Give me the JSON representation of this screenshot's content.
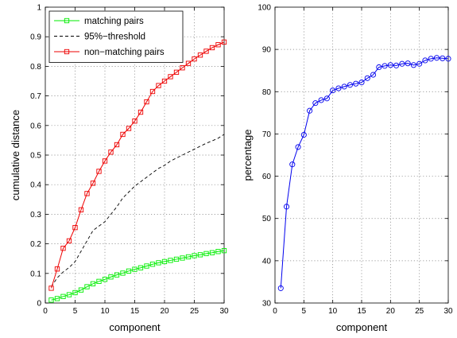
{
  "chart_data": [
    {
      "type": "line",
      "title": "",
      "xlabel": "component",
      "ylabel": "cumulative distance",
      "xlim": [
        0,
        30
      ],
      "ylim": [
        0,
        1
      ],
      "grid": true,
      "legend_position": "top-left",
      "x_ticks": [
        "0",
        "5",
        "10",
        "15",
        "20",
        "25",
        "30"
      ],
      "y_ticks": [
        "0",
        "0.1",
        "0.2",
        "0.3",
        "0.4",
        "0.5",
        "0.6",
        "0.7",
        "0.8",
        "0.9",
        "1"
      ],
      "x": [
        1,
        2,
        3,
        4,
        5,
        6,
        7,
        8,
        9,
        10,
        11,
        12,
        13,
        14,
        15,
        16,
        17,
        18,
        19,
        20,
        21,
        22,
        23,
        24,
        25,
        26,
        27,
        28,
        29,
        30
      ],
      "series": [
        {
          "name": "matching pairs",
          "color": "#00ee00",
          "marker": "square",
          "line": "solid",
          "values": [
            0.01,
            0.015,
            0.022,
            0.028,
            0.035,
            0.044,
            0.055,
            0.065,
            0.073,
            0.08,
            0.088,
            0.095,
            0.101,
            0.108,
            0.114,
            0.119,
            0.125,
            0.131,
            0.136,
            0.14,
            0.144,
            0.148,
            0.152,
            0.156,
            0.16,
            0.163,
            0.167,
            0.17,
            0.174,
            0.177
          ]
        },
        {
          "name": "95%−threshold",
          "color": "#000000",
          "marker": "none",
          "line": "dashed",
          "values": [
            0.055,
            0.085,
            0.105,
            0.12,
            0.14,
            0.175,
            0.21,
            0.245,
            0.26,
            0.275,
            0.3,
            0.325,
            0.355,
            0.375,
            0.395,
            0.41,
            0.425,
            0.44,
            0.455,
            0.465,
            0.48,
            0.49,
            0.5,
            0.51,
            0.52,
            0.53,
            0.54,
            0.548,
            0.557,
            0.57
          ]
        },
        {
          "name": "non−matching pairs",
          "color": "#ee0000",
          "marker": "square",
          "line": "solid",
          "values": [
            0.05,
            0.115,
            0.185,
            0.21,
            0.255,
            0.315,
            0.37,
            0.405,
            0.445,
            0.48,
            0.51,
            0.535,
            0.57,
            0.59,
            0.615,
            0.645,
            0.68,
            0.715,
            0.735,
            0.75,
            0.765,
            0.78,
            0.795,
            0.81,
            0.825,
            0.838,
            0.851,
            0.863,
            0.873,
            0.882
          ]
        }
      ]
    },
    {
      "type": "line",
      "title": "",
      "xlabel": "component",
      "ylabel": "percentage",
      "xlim": [
        0,
        30
      ],
      "ylim": [
        30,
        100
      ],
      "grid": true,
      "x_ticks": [
        "0",
        "5",
        "10",
        "15",
        "20",
        "25",
        "30"
      ],
      "y_ticks": [
        "30",
        "40",
        "50",
        "60",
        "70",
        "80",
        "90",
        "100"
      ],
      "x": [
        1,
        2,
        3,
        4,
        5,
        6,
        7,
        8,
        9,
        10,
        11,
        12,
        13,
        14,
        15,
        16,
        17,
        18,
        19,
        20,
        21,
        22,
        23,
        24,
        25,
        26,
        27,
        28,
        29,
        30
      ],
      "series": [
        {
          "color": "#0000ee",
          "marker": "circle",
          "line": "solid",
          "values": [
            33.5,
            52.8,
            62.8,
            66.9,
            69.8,
            75.5,
            77.3,
            78,
            78.4,
            80.3,
            80.8,
            81.2,
            81.6,
            81.9,
            82.2,
            83.2,
            84,
            85.8,
            86.1,
            86.3,
            86.2,
            86.6,
            86.7,
            86.3,
            86.6,
            87.4,
            87.8,
            88,
            87.9,
            87.8
          ]
        }
      ]
    }
  ]
}
